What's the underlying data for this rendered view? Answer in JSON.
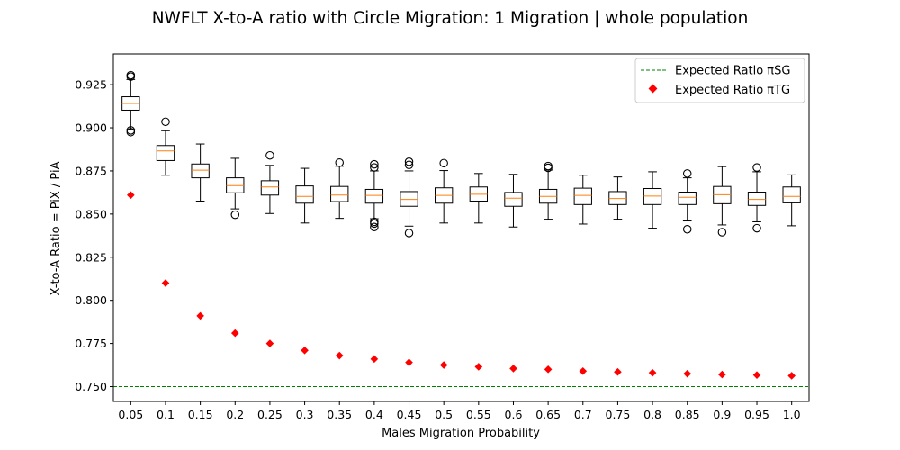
{
  "chart_data": {
    "type": "box",
    "title": "NWFLT X-to-A ratio with Circle Migration: 1 Migration | whole population",
    "xlabel": "Males Migration Probability",
    "ylabel": "X-to-A Ratio = PiX / PiA",
    "categories": [
      "0.05",
      "0.1",
      "0.15",
      "0.2",
      "0.25",
      "0.3",
      "0.35",
      "0.4",
      "0.45",
      "0.5",
      "0.55",
      "0.6",
      "0.65",
      "0.7",
      "0.75",
      "0.8",
      "0.85",
      "0.9",
      "0.95",
      "1.0"
    ],
    "ylim": [
      0.7414,
      0.9428
    ],
    "yticks": [
      "0.750",
      "0.775",
      "0.800",
      "0.825",
      "0.850",
      "0.875",
      "0.900",
      "0.925"
    ],
    "grid": false,
    "legend_position": "top-right",
    "boxes": [
      {
        "whisker_low": 0.899,
        "q1": 0.9102,
        "median": 0.9141,
        "q3": 0.918,
        "whisker_high": 0.928,
        "outliers": [
          0.9305,
          0.9297,
          0.8985,
          0.8975
        ]
      },
      {
        "whisker_low": 0.8725,
        "q1": 0.881,
        "median": 0.8866,
        "q3": 0.8897,
        "whisker_high": 0.8983,
        "outliers": [
          0.9035
        ]
      },
      {
        "whisker_low": 0.8575,
        "q1": 0.871,
        "median": 0.8754,
        "q3": 0.879,
        "whisker_high": 0.8906,
        "outliers": []
      },
      {
        "whisker_low": 0.853,
        "q1": 0.8623,
        "median": 0.8665,
        "q3": 0.871,
        "whisker_high": 0.8823,
        "outliers": [
          0.8496
        ]
      },
      {
        "whisker_low": 0.8503,
        "q1": 0.861,
        "median": 0.8657,
        "q3": 0.8693,
        "whisker_high": 0.8782,
        "outliers": [
          0.884
        ]
      },
      {
        "whisker_low": 0.8448,
        "q1": 0.8563,
        "median": 0.8602,
        "q3": 0.8663,
        "whisker_high": 0.8765,
        "outliers": []
      },
      {
        "whisker_low": 0.8475,
        "q1": 0.8572,
        "median": 0.861,
        "q3": 0.866,
        "whisker_high": 0.8777,
        "outliers": [
          0.8798
        ]
      },
      {
        "whisker_low": 0.8473,
        "q1": 0.8563,
        "median": 0.8608,
        "q3": 0.8643,
        "whisker_high": 0.875,
        "outliers": [
          0.8788,
          0.877,
          0.8455,
          0.8445,
          0.8425
        ]
      },
      {
        "whisker_low": 0.843,
        "q1": 0.8545,
        "median": 0.8585,
        "q3": 0.863,
        "whisker_high": 0.875,
        "outliers": [
          0.8803,
          0.8785,
          0.839
        ]
      },
      {
        "whisker_low": 0.8448,
        "q1": 0.8563,
        "median": 0.8608,
        "q3": 0.8652,
        "whisker_high": 0.8752,
        "outliers": [
          0.8795
        ]
      },
      {
        "whisker_low": 0.8448,
        "q1": 0.8575,
        "median": 0.8615,
        "q3": 0.8657,
        "whisker_high": 0.8735,
        "outliers": []
      },
      {
        "whisker_low": 0.8425,
        "q1": 0.8545,
        "median": 0.8592,
        "q3": 0.8625,
        "whisker_high": 0.873,
        "outliers": []
      },
      {
        "whisker_low": 0.847,
        "q1": 0.8563,
        "median": 0.8602,
        "q3": 0.8643,
        "whisker_high": 0.8755,
        "outliers": [
          0.8778,
          0.8768
        ]
      },
      {
        "whisker_low": 0.8442,
        "q1": 0.8555,
        "median": 0.8608,
        "q3": 0.865,
        "whisker_high": 0.8725,
        "outliers": []
      },
      {
        "whisker_low": 0.847,
        "q1": 0.8555,
        "median": 0.859,
        "q3": 0.863,
        "whisker_high": 0.8715,
        "outliers": []
      },
      {
        "whisker_low": 0.8418,
        "q1": 0.8555,
        "median": 0.8604,
        "q3": 0.8648,
        "whisker_high": 0.8745,
        "outliers": []
      },
      {
        "whisker_low": 0.846,
        "q1": 0.8555,
        "median": 0.8597,
        "q3": 0.8627,
        "whisker_high": 0.871,
        "outliers": [
          0.8735,
          0.8412
        ]
      },
      {
        "whisker_low": 0.8437,
        "q1": 0.856,
        "median": 0.8612,
        "q3": 0.866,
        "whisker_high": 0.8775,
        "outliers": [
          0.8395
        ]
      },
      {
        "whisker_low": 0.8455,
        "q1": 0.855,
        "median": 0.8585,
        "q3": 0.8627,
        "whisker_high": 0.8745,
        "outliers": [
          0.877,
          0.8418
        ]
      },
      {
        "whisker_low": 0.8432,
        "q1": 0.8565,
        "median": 0.8602,
        "q3": 0.8657,
        "whisker_high": 0.8727,
        "outliers": []
      }
    ],
    "series": [
      {
        "name": "Expected Ratio πSG",
        "type": "hline",
        "value": 0.75,
        "color": "#008000",
        "style": "dashed"
      },
      {
        "name": "Expected Ratio πTG",
        "type": "scatter",
        "marker": "diamond",
        "color": "#ff0000",
        "values": [
          0.861,
          0.81,
          0.791,
          0.781,
          0.775,
          0.771,
          0.768,
          0.766,
          0.764,
          0.7625,
          0.7615,
          0.7605,
          0.76,
          0.759,
          0.7585,
          0.758,
          0.7575,
          0.757,
          0.7567,
          0.7563
        ]
      }
    ],
    "colors": {
      "box": "#000000",
      "median": "#ff7f0e"
    }
  }
}
